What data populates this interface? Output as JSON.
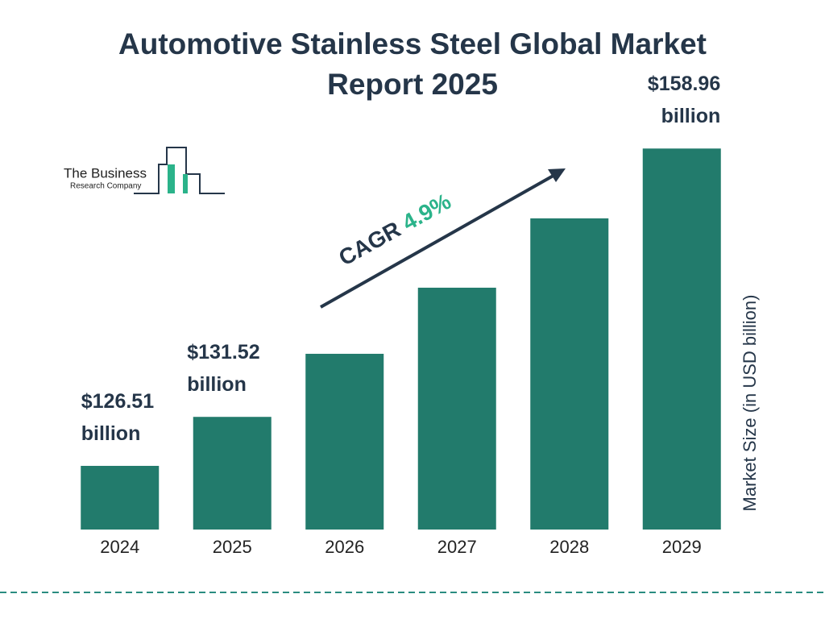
{
  "chart_data": {
    "type": "bar",
    "title": "Automotive Stainless Steel Global Market Report 2025",
    "y_axis_label": "Market Size (in USD billion)",
    "categories": [
      "2024",
      "2025",
      "2026",
      "2027",
      "2028",
      "2029"
    ],
    "values": [
      126.51,
      131.52,
      137.97,
      144.73,
      151.82,
      158.96
    ],
    "value_labels": [
      "$126.51 billion",
      "$131.52 billion",
      null,
      null,
      null,
      "$158.96 billion"
    ],
    "color": "#227b6c",
    "ylim": [
      120,
      165
    ],
    "annotation": {
      "label": "CAGR",
      "value": "4.9%"
    },
    "logo": {
      "line1": "The Business",
      "line2": "Research Company"
    }
  }
}
